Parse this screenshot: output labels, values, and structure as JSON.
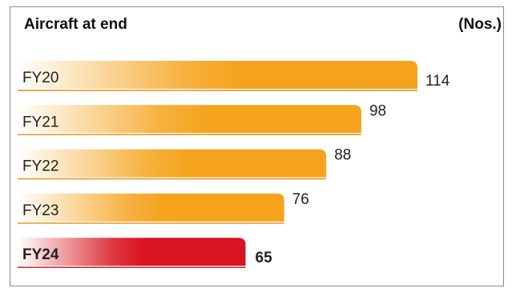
{
  "header": {
    "title": "Aircraft at end",
    "unit": "(Nos.)"
  },
  "colors": {
    "bar": "#f5a31c",
    "bar_line": "#e88d0a",
    "highlight_bar": "#d7141f",
    "highlight_line": "#c4111b",
    "text": "#222222"
  },
  "chart_data": {
    "type": "bar",
    "orientation": "horizontal",
    "categories": [
      "FY20",
      "FY21",
      "FY22",
      "FY23",
      "FY24"
    ],
    "values": [
      114,
      98,
      88,
      76,
      65
    ],
    "highlight": "FY24",
    "title": "Aircraft at end",
    "unit": "(Nos.)",
    "xlim": [
      0,
      114
    ],
    "grid": false,
    "legend": "none"
  }
}
